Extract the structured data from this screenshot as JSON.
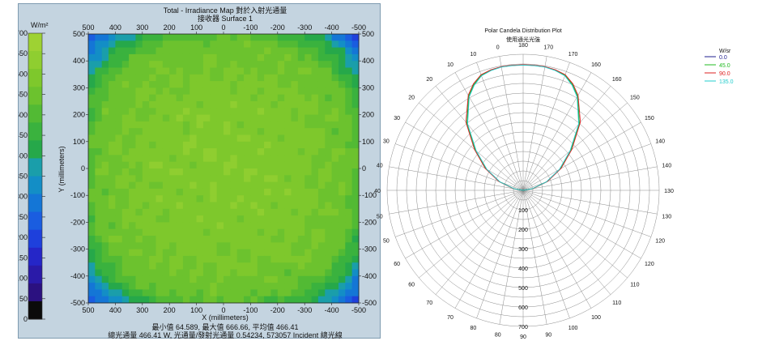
{
  "left_chart": {
    "title": "Total - Irradiance Map 對於入射光通量",
    "subtitle": "接收器 Surface 1",
    "colorbar_unit": "W/m²",
    "colorbar_ticks": [
      "700",
      "650",
      "600",
      "550",
      "500",
      "450",
      "400",
      "350",
      "300",
      "250",
      "200",
      "150",
      "100",
      "50",
      "0"
    ],
    "colorbar_colors": [
      "#9ed233",
      "#8fce30",
      "#7ec82c",
      "#6cc22e",
      "#52ba34",
      "#3ab23e",
      "#26a84a",
      "#1a9eaa",
      "#138ec6",
      "#1476d6",
      "#1a5de0",
      "#1e40dc",
      "#2526c8",
      "#2a1aa8",
      "#2b1180",
      "#0b0b0b"
    ],
    "x_label": "X (millimeters)",
    "y_label": "Y (millimeters)",
    "x_ticks": [
      "500",
      "400",
      "300",
      "200",
      "100",
      "0",
      "-100",
      "-200",
      "-300",
      "-400",
      "-500"
    ],
    "y_ticks_left": [
      "500",
      "400",
      "300",
      "200",
      "100",
      "0",
      "-100",
      "-200",
      "-300",
      "-400",
      "-500"
    ],
    "y_ticks_right": [
      "500",
      "400",
      "300",
      "200",
      "100",
      "0",
      "-100",
      "-200",
      "-300",
      "-400",
      "-500"
    ],
    "stats_line1": "最小值 64.589, 最大值 666.66, 平均值 466.41",
    "stats_line2": "總光通量 466.41 W, 光通量/發射光通量 0.54234, 573057 Incident 總光線"
  },
  "chart_data": [
    {
      "type": "heatmap",
      "title": "Total - Irradiance Map 對於入射光通量",
      "subtitle": "接收器 Surface 1",
      "xlabel": "X (millimeters)",
      "ylabel": "Y (millimeters)",
      "xlim": [
        500,
        -500
      ],
      "ylim": [
        -500,
        500
      ],
      "colorbar_range": [
        0,
        700
      ],
      "colorbar_unit": "W/m²",
      "min_value": 64.589,
      "max_value": 666.66,
      "mean_value": 466.41,
      "total_flux_W": 466.41,
      "flux_ratio": 0.54234,
      "incident_rays": 573057,
      "center_approx": 600,
      "edge_approx": 250,
      "corner_approx": 150
    },
    {
      "type": "line",
      "polar": true,
      "title": "Polar Candela Distribution Plot",
      "subtitle": "使用通光光強",
      "unit": "W/sr",
      "radial_ticks": [
        100,
        200,
        300,
        400,
        500,
        600,
        700
      ],
      "radial_max": 700,
      "angle_ticks": [
        "0",
        "10",
        "20",
        "30",
        "40",
        "50",
        "60",
        "70",
        "80",
        "90",
        "100",
        "110",
        "120",
        "130",
        "140",
        "150",
        "160",
        "170",
        "180"
      ],
      "series": [
        {
          "name": "0.0",
          "color": "#1f1f8f",
          "angles": [
            95,
            100,
            110,
            120,
            130,
            140,
            150,
            155,
            160,
            165,
            170,
            175,
            180
          ],
          "values": [
            0,
            50,
            130,
            220,
            320,
            450,
            560,
            600,
            630,
            640,
            645,
            645,
            645
          ]
        },
        {
          "name": "45.0",
          "color": "#22bb22",
          "angles": [
            95,
            100,
            110,
            120,
            130,
            140,
            150,
            155,
            160,
            165,
            170,
            175,
            180
          ],
          "values": [
            0,
            50,
            130,
            220,
            320,
            450,
            560,
            600,
            630,
            640,
            645,
            645,
            645
          ]
        },
        {
          "name": "90.0",
          "color": "#dd2222",
          "angles": [
            95,
            100,
            110,
            120,
            130,
            140,
            150,
            155,
            160,
            165,
            170,
            175,
            180
          ],
          "values": [
            0,
            52,
            133,
            225,
            327,
            458,
            565,
            605,
            633,
            642,
            646,
            646,
            646
          ]
        },
        {
          "name": "135.0",
          "color": "#22cccc",
          "angles": [
            95,
            100,
            110,
            120,
            130,
            140,
            150,
            155,
            160,
            165,
            170,
            175,
            180
          ],
          "values": [
            0,
            48,
            127,
            215,
            315,
            445,
            555,
            596,
            627,
            638,
            644,
            644,
            644
          ]
        }
      ]
    }
  ],
  "right_chart": {
    "title": "Polar Candela Distribution Plot",
    "subtitle": "使用通光光強",
    "legend_unit": "W/sr",
    "angle_labels": [
      "180",
      "170",
      "170",
      "160",
      "160",
      "150",
      "150",
      "140",
      "140",
      "130",
      "130",
      "120",
      "120",
      "110",
      "110",
      "100",
      "100",
      "90",
      "90",
      "80",
      "80",
      "70",
      "70",
      "60",
      "60",
      "50",
      "50",
      "40",
      "40",
      "30",
      "30",
      "20",
      "20",
      "10",
      "10",
      "0"
    ],
    "radial_labels": [
      "100",
      "200",
      "300",
      "400",
      "500",
      "600",
      "700"
    ]
  }
}
